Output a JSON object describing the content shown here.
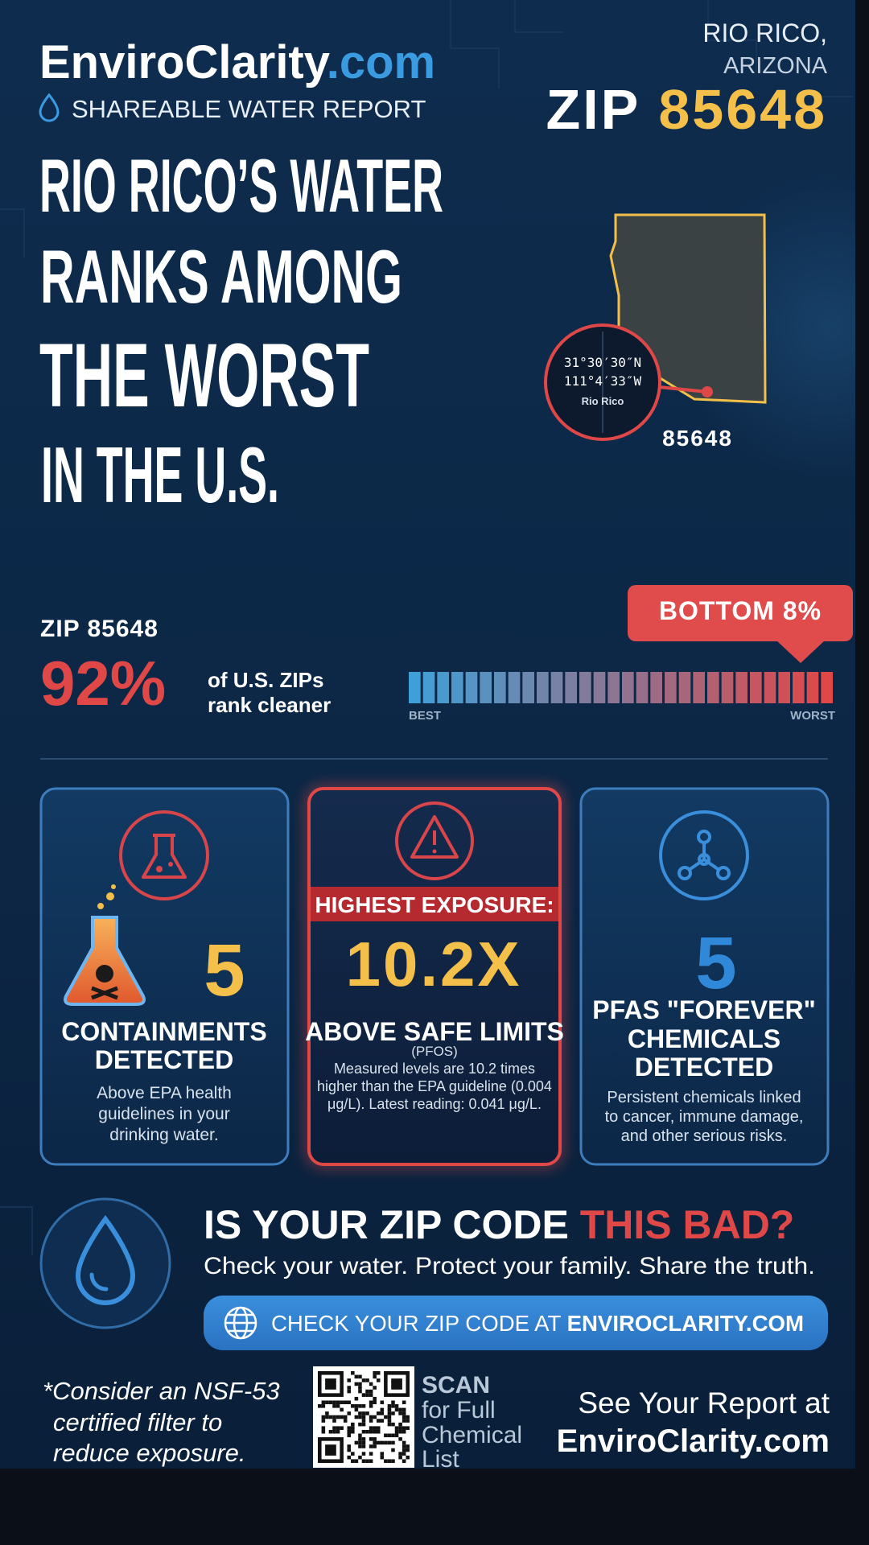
{
  "header": {
    "brand_main": "EnviroClarity",
    "brand_tld": ".com",
    "subtitle": "SHAREABLE WATER REPORT",
    "city": "RIO RICO,",
    "state": "ARIZONA",
    "zip_label": "ZIP",
    "zip": "85648"
  },
  "headline": [
    "RIO RICO’S WATER",
    "RANKS AMONG",
    "THE WORST",
    "IN THE U.S."
  ],
  "map": {
    "lat": "31°30′30″N",
    "lon": "111°4′33″W",
    "place": "Rio Rico",
    "zip": "85648"
  },
  "ranking": {
    "zip_line": "ZIP 85648",
    "percent": "92%",
    "caption": [
      "of U.S. ZIPs",
      "rank cleaner"
    ],
    "badge": "BOTTOM 8%",
    "best": "BEST",
    "worst": "WORST"
  },
  "cards": [
    {
      "number": "5",
      "title": [
        "CONTAINMENTS",
        "DETECTED"
      ],
      "body": [
        "Above EPA health",
        "guidelines in your",
        "drinking water."
      ]
    },
    {
      "banner": "HIGHEST EXPOSURE:",
      "number": "10.2X",
      "title": [
        "ABOVE SAFE LIMITS"
      ],
      "note": "(PFOS)",
      "body": [
        "Measured levels are 10.2 times",
        "higher than the EPA guideline (0.004",
        "μg/L). Latest reading: 0.041 μg/L."
      ]
    },
    {
      "number": "5",
      "title": [
        "PFAS \"FOREVER\"",
        "CHEMICALS",
        "DETECTED"
      ],
      "body": [
        "Persistent chemicals linked",
        "to cancer, immune damage,",
        "and other serious risks."
      ]
    }
  ],
  "cta": {
    "title_a": "IS YOUR ZIP CODE ",
    "title_b": "THIS BAD?",
    "tagline": "Check your water. Protect your family. Share the truth.",
    "button_a": "CHECK YOUR ZIP CODE AT ",
    "button_b": "ENVIROCLARITY.COM"
  },
  "footer": {
    "note": [
      "*Consider an NSF-53",
      "certified filter to",
      "reduce exposure."
    ],
    "scan": [
      "SCAN",
      "for Full",
      "Chemical",
      "List"
    ],
    "report_a": "See Your Report at",
    "report_b": "EnviroClarity.com"
  }
}
